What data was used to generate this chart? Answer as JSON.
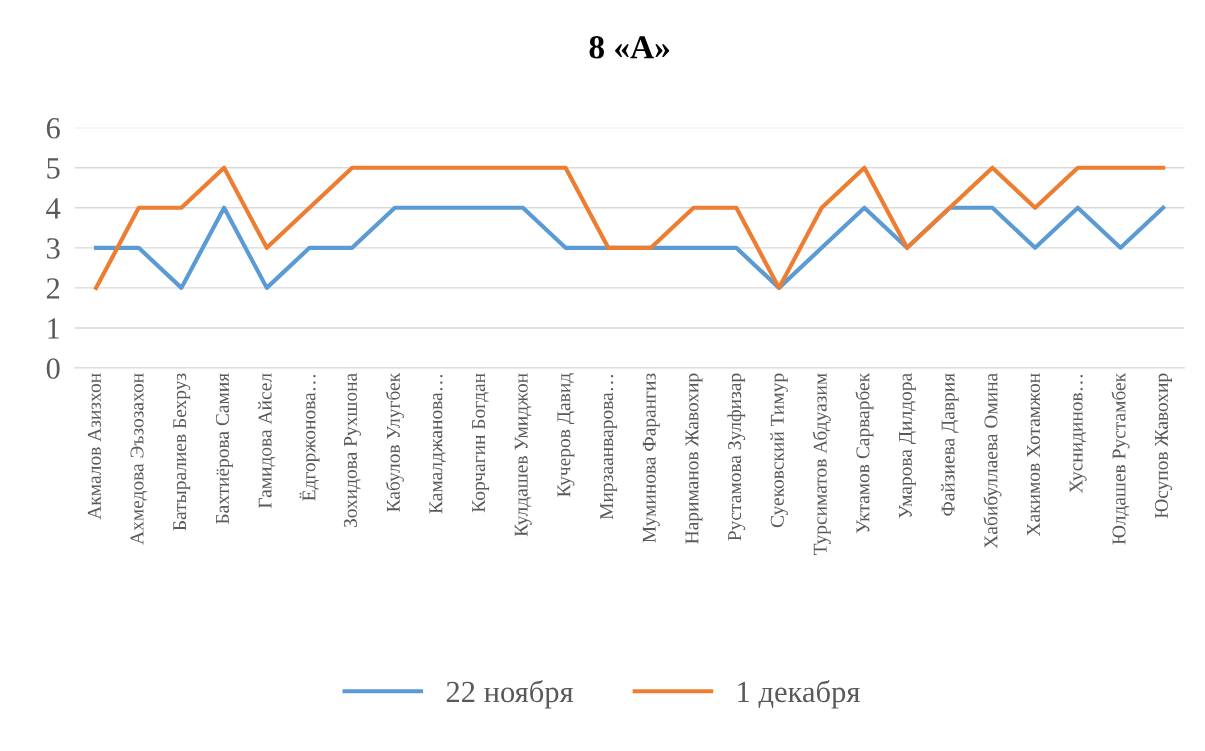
{
  "chart_data": {
    "type": "line",
    "title": "8 «А»",
    "categories": [
      "Акмалов Азизхон",
      "Ахмедова Эъзозахон",
      "Батыралиев Бехруз",
      "Бахтиёрова Самия",
      "Гамидова Айсел",
      "Ёдгоржонова…",
      "Зохидова Рухшона",
      "Кабулов Улугбек",
      "Камалджанова…",
      "Корчагин Богдан",
      "Кулдашев Умиджон",
      "Кучеров Давид",
      "Мирзаанварова…",
      "Муминова Фарангиз",
      "Нариманов Жавохир",
      "Рустамова Зулфизар",
      "Суековский Тимур",
      "Турсиматов Абдуазим",
      "Уктамов Сарварбек",
      "Умарова Дилдора",
      "Файзиева Даврия",
      "Хабибуллаева Омина",
      "Хакимов Хотамжон",
      "Хуснидинов…",
      "Юлдашев Рустамбек",
      "Юсупов Жавохир"
    ],
    "series": [
      {
        "name": "22 ноября",
        "color": "#5b9bd5",
        "values": [
          3,
          3,
          2,
          4,
          2,
          3,
          3,
          4,
          4,
          4,
          4,
          3,
          3,
          3,
          3,
          3,
          2,
          3,
          4,
          3,
          4,
          4,
          3,
          4,
          3,
          4
        ]
      },
      {
        "name": "1 декабря",
        "color": "#ed7d31",
        "values": [
          2,
          4,
          4,
          5,
          3,
          4,
          5,
          5,
          5,
          5,
          5,
          5,
          3,
          3,
          4,
          4,
          2,
          4,
          5,
          3,
          4,
          5,
          4,
          5,
          5,
          5
        ]
      }
    ],
    "ylim": [
      0,
      6
    ],
    "yticks": [
      0,
      1,
      2,
      3,
      4,
      5,
      6
    ],
    "grid": "y",
    "legend": "bottom",
    "marker": "none",
    "line_style": "solid"
  }
}
